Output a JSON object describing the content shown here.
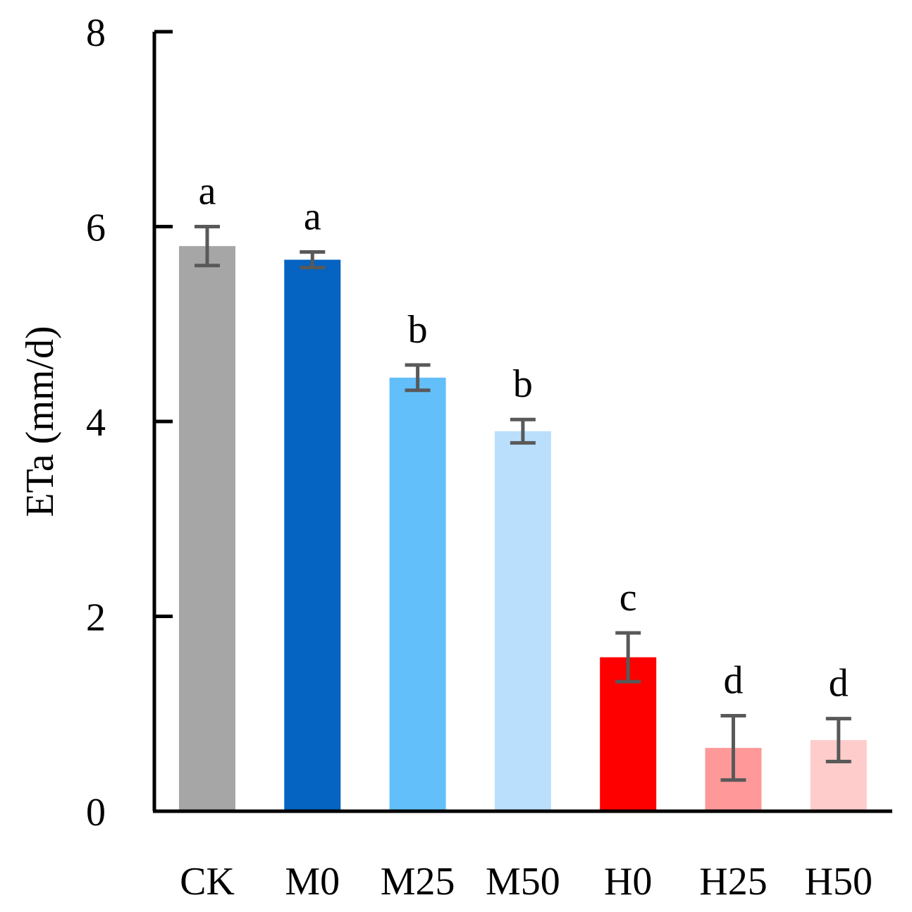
{
  "chart_data": {
    "type": "bar",
    "title": "",
    "xlabel": "",
    "ylabel": "ETa (mm/d)",
    "ylim": [
      0,
      8
    ],
    "yticks": [
      0,
      2,
      4,
      6,
      8
    ],
    "grid": false,
    "categories": [
      "CK",
      "M0",
      "M25",
      "M50",
      "H0",
      "H25",
      "H50"
    ],
    "values": [
      5.8,
      5.66,
      4.45,
      3.9,
      1.58,
      0.65,
      0.73
    ],
    "errors": [
      0.2,
      0.08,
      0.13,
      0.12,
      0.25,
      0.33,
      0.22
    ],
    "significance": [
      "a",
      "a",
      "b",
      "b",
      "c",
      "d",
      "d"
    ],
    "colors": [
      "#a6a6a6",
      "#0563c1",
      "#62bff9",
      "#b9dffc",
      "#ff0000",
      "#ff9999",
      "#ffcccc"
    ],
    "error_bar_color": "#595959"
  }
}
